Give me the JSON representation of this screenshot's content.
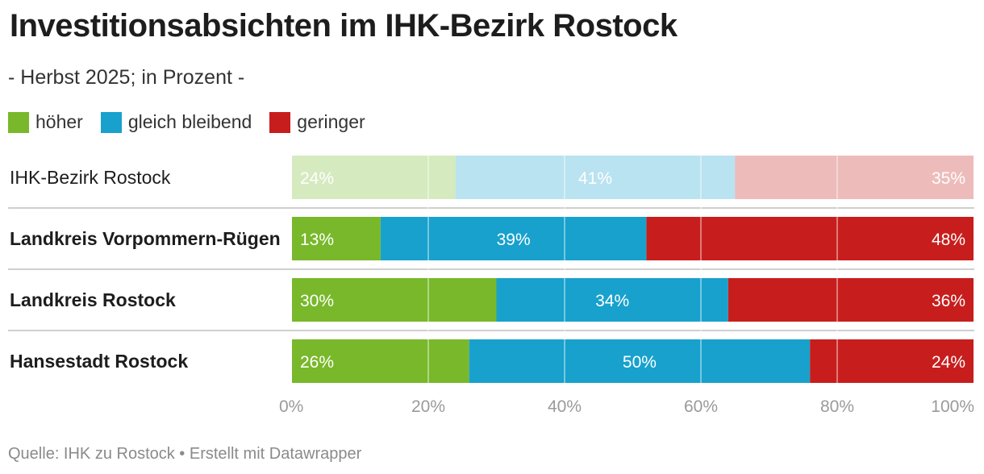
{
  "header": {
    "title": "Investitionsabsichten im IHK-Bezirk Rostock",
    "subtitle": "- Herbst 2025; in Prozent -"
  },
  "legend": [
    {
      "label": "höher",
      "color": "#78b82a"
    },
    {
      "label": "gleich bleibend",
      "color": "#18a1cd"
    },
    {
      "label": "geringer",
      "color": "#c71e1d"
    }
  ],
  "footer": {
    "source": "Quelle: IHK zu Rostock • Erstellt mit Datawrapper"
  },
  "chart_data": {
    "type": "bar",
    "orientation": "horizontal",
    "stacked": true,
    "title": "Investitionsabsichten im IHK-Bezirk Rostock",
    "subtitle": "- Herbst 2025; in Prozent -",
    "categories": [
      "IHK-Bezirk Rostock",
      "Landkreis Vorpommern-Rügen",
      "Landkreis Rostock",
      "Hansestadt Rostock"
    ],
    "highlighted_categories": [
      "Landkreis Vorpommern-Rügen",
      "Landkreis Rostock",
      "Hansestadt Rostock"
    ],
    "series": [
      {
        "name": "höher",
        "color": "#78b82a",
        "values": [
          24,
          13,
          30,
          26
        ]
      },
      {
        "name": "gleich bleibend",
        "color": "#18a1cd",
        "values": [
          41,
          39,
          34,
          50
        ]
      },
      {
        "name": "geringer",
        "color": "#c71e1d",
        "values": [
          35,
          48,
          36,
          24
        ]
      }
    ],
    "value_labels": [
      [
        "24%",
        "41%",
        "35%"
      ],
      [
        "13%",
        "39%",
        "48%"
      ],
      [
        "30%",
        "34%",
        "36%"
      ],
      [
        "26%",
        "50%",
        "24%"
      ]
    ],
    "xlim": [
      0,
      100
    ],
    "x_ticks": [
      0,
      20,
      40,
      60,
      80,
      100
    ],
    "x_tick_labels": [
      "0%",
      "20%",
      "40%",
      "60%",
      "80%",
      "100%"
    ],
    "grid": true,
    "legend_position": "top-left"
  }
}
